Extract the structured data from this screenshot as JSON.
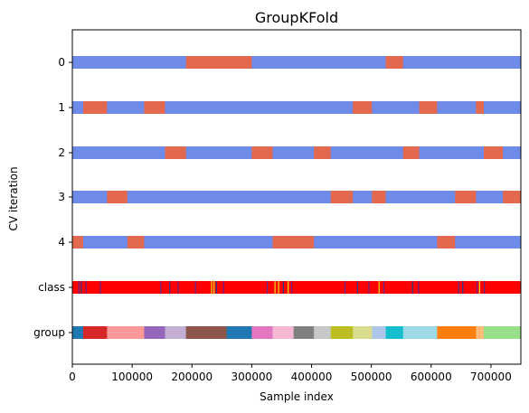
{
  "chart_data": {
    "type": "bar",
    "title": "GroupKFold",
    "xlabel": "Sample index",
    "ylabel": "CV iteration",
    "xlim": [
      0,
      750000
    ],
    "xticks": [
      0,
      100000,
      200000,
      300000,
      400000,
      500000,
      600000,
      700000
    ],
    "xtick_labels": [
      "0",
      "100000",
      "200000",
      "300000",
      "400000",
      "500000",
      "600000",
      "700000"
    ],
    "rows": [
      "0",
      "1",
      "2",
      "3",
      "4",
      "class",
      "group"
    ],
    "colors": {
      "train": "#6f8bea",
      "test": "#e2694f",
      "class_bg": "#ff0000"
    },
    "cv_splits": [
      {
        "name": "0",
        "test_segments": [
          [
            190000,
            300000
          ],
          [
            524000,
            553000
          ]
        ]
      },
      {
        "name": "1",
        "test_segments": [
          [
            18000,
            58000
          ],
          [
            120000,
            155000
          ],
          [
            469000,
            501000
          ],
          [
            580000,
            610000
          ],
          [
            675000,
            688000
          ]
        ]
      },
      {
        "name": "2",
        "test_segments": [
          [
            155000,
            190000
          ],
          [
            300000,
            335000
          ],
          [
            404000,
            432000
          ],
          [
            553000,
            580000
          ],
          [
            688000,
            720000
          ]
        ]
      },
      {
        "name": "3",
        "test_segments": [
          [
            58000,
            92000
          ],
          [
            432000,
            469000
          ],
          [
            501000,
            524000
          ],
          [
            640000,
            675000
          ],
          [
            720000,
            750000
          ]
        ]
      },
      {
        "name": "4",
        "test_segments": [
          [
            0,
            18000
          ],
          [
            92000,
            120000
          ],
          [
            335000,
            404000
          ],
          [
            610000,
            640000
          ]
        ]
      }
    ],
    "class_stripes": [
      {
        "x": 10000,
        "color": "#5b2d8e"
      },
      {
        "x": 14000,
        "color": "#2b3a8c"
      },
      {
        "x": 22000,
        "color": "#6a1f8a"
      },
      {
        "x": 46000,
        "color": "#5b2d8e"
      },
      {
        "x": 147000,
        "color": "#5b2d8e"
      },
      {
        "x": 162000,
        "color": "#2b3a8c"
      },
      {
        "x": 176000,
        "color": "#6a1f8a"
      },
      {
        "x": 205000,
        "color": "#5b2d8e"
      },
      {
        "x": 232000,
        "color": "#e4e21c"
      },
      {
        "x": 236000,
        "color": "#e4e21c"
      },
      {
        "x": 240000,
        "color": "#2b3a8c"
      },
      {
        "x": 252000,
        "color": "#6a1f8a"
      },
      {
        "x": 325000,
        "color": "#5b2d8e"
      },
      {
        "x": 338000,
        "color": "#e4e21c"
      },
      {
        "x": 344000,
        "color": "#e4e21c"
      },
      {
        "x": 352000,
        "color": "#2b3a8c"
      },
      {
        "x": 360000,
        "color": "#e4e21c"
      },
      {
        "x": 366000,
        "color": "#6a1f8a"
      },
      {
        "x": 455000,
        "color": "#5b2d8e"
      },
      {
        "x": 476000,
        "color": "#2b3a8c"
      },
      {
        "x": 495000,
        "color": "#6a1f8a"
      },
      {
        "x": 512000,
        "color": "#e4e21c"
      },
      {
        "x": 520000,
        "color": "#5b2d8e"
      },
      {
        "x": 568000,
        "color": "#2b3a8c"
      },
      {
        "x": 578000,
        "color": "#6a1f8a"
      },
      {
        "x": 645000,
        "color": "#5b2d8e"
      },
      {
        "x": 652000,
        "color": "#2b3a8c"
      },
      {
        "x": 676000,
        "color": "#6a1f8a"
      },
      {
        "x": 680000,
        "color": "#e4e21c"
      },
      {
        "x": 688000,
        "color": "#5b2d8e"
      }
    ],
    "groups": [
      {
        "start": 0,
        "end": 18000,
        "color": "#1f77b4"
      },
      {
        "start": 18000,
        "end": 58000,
        "color": "#d62728"
      },
      {
        "start": 58000,
        "end": 120000,
        "color": "#ff9896"
      },
      {
        "start": 120000,
        "end": 155000,
        "color": "#9467bd"
      },
      {
        "start": 155000,
        "end": 190000,
        "color": "#c5b0d5"
      },
      {
        "start": 190000,
        "end": 258000,
        "color": "#8c564b"
      },
      {
        "start": 258000,
        "end": 300000,
        "color": "#1f77b4"
      },
      {
        "start": 300000,
        "end": 335000,
        "color": "#e377c2"
      },
      {
        "start": 335000,
        "end": 370000,
        "color": "#f7b6d2"
      },
      {
        "start": 370000,
        "end": 404000,
        "color": "#7f7f7f"
      },
      {
        "start": 404000,
        "end": 432000,
        "color": "#c7c7c7"
      },
      {
        "start": 432000,
        "end": 469000,
        "color": "#bcbd22"
      },
      {
        "start": 469000,
        "end": 501000,
        "color": "#dbdb8d"
      },
      {
        "start": 501000,
        "end": 524000,
        "color": "#aec7e8"
      },
      {
        "start": 524000,
        "end": 553000,
        "color": "#17becf"
      },
      {
        "start": 553000,
        "end": 610000,
        "color": "#9edae5"
      },
      {
        "start": 610000,
        "end": 675000,
        "color": "#ff7f0e"
      },
      {
        "start": 675000,
        "end": 688000,
        "color": "#ffbb78"
      },
      {
        "start": 688000,
        "end": 750000,
        "color": "#98df8a"
      }
    ]
  }
}
